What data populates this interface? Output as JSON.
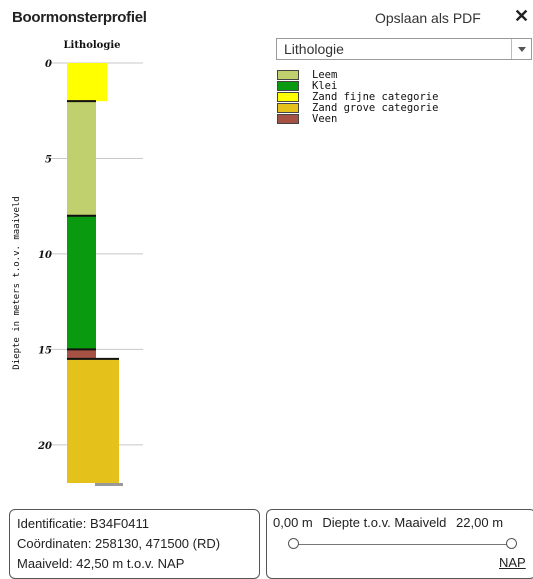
{
  "header": {
    "title": "Boormonsterprofiel",
    "save_pdf_label": "Opslaan als PDF",
    "close_glyph": "✕"
  },
  "layer_select": {
    "selected": "Lithologie"
  },
  "legend": [
    {
      "label": "Leem",
      "color": "#c0d06e"
    },
    {
      "label": "Klei",
      "color": "#0a9a10"
    },
    {
      "label": "Zand fijne categorie",
      "color": "#ffff00"
    },
    {
      "label": "Zand grove categorie",
      "color": "#e5c11c"
    },
    {
      "label": "Veen",
      "color": "#a55244"
    }
  ],
  "chart_data": {
    "type": "bar",
    "title": "Lithologie",
    "ylabel": "Diepte in meters t.o.v. maaiveld",
    "ylim": [
      0,
      22
    ],
    "y_ticks": [
      "0",
      "5",
      "10",
      "15",
      "20"
    ],
    "layers": [
      {
        "lithology": "Zand fijne categorie",
        "top": 0,
        "bottom": 2,
        "color": "#ffff00"
      },
      {
        "lithology": "Leem",
        "top": 2,
        "bottom": 8,
        "color": "#c0d06e"
      },
      {
        "lithology": "Klei",
        "top": 8,
        "bottom": 15,
        "color": "#0a9a10"
      },
      {
        "lithology": "Veen",
        "top": 15,
        "bottom": 15.5,
        "color": "#a55244"
      },
      {
        "lithology": "Zand grove categorie",
        "top": 15.5,
        "bottom": 22,
        "color": "#e5c11c"
      }
    ]
  },
  "info": {
    "identification": "Identificatie: B34F0411",
    "coordinates": "Coördinaten: 258130, 471500 (RD)",
    "surface_level": "Maaiveld: 42,50 m t.o.v. NAP"
  },
  "depth_slider": {
    "min_label": "0,00 m",
    "caption": "Diepte t.o.v. Maaiveld",
    "max_label": "22,00 m",
    "low_value": 0,
    "high_value": 22,
    "nap_link": "NAP"
  }
}
